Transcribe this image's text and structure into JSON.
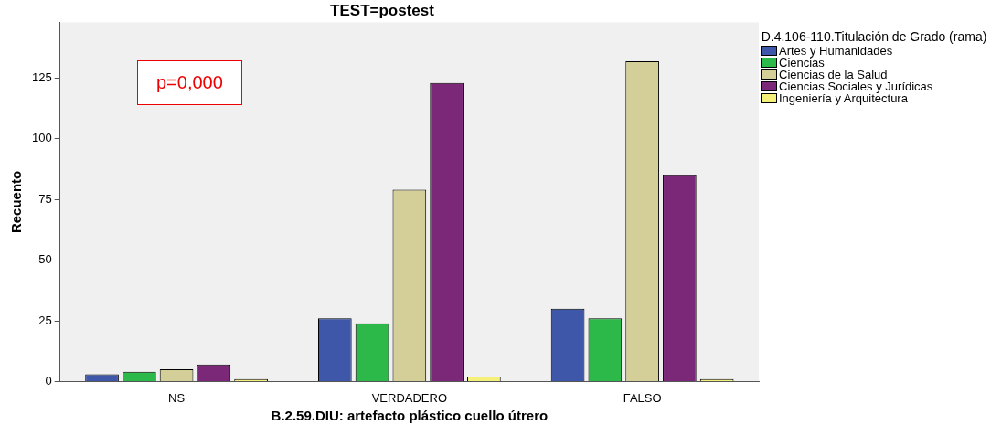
{
  "chart_data": {
    "type": "bar",
    "title": "TEST=postest",
    "xlabel": "B.2.59.DIU: artefacto plástico cuello útrero",
    "ylabel": "Recuento",
    "legend_title": "D.4.106-110.Titulación de Grado (rama)",
    "legend": "right",
    "categories": [
      "NS",
      "VERDADERO",
      "FALSO"
    ],
    "series": [
      {
        "name": "Artes y Humanidades",
        "color": "#3f57a8",
        "values": [
          3,
          26,
          30
        ]
      },
      {
        "name": "Ciencias",
        "color": "#2db84a",
        "values": [
          4,
          24,
          26
        ]
      },
      {
        "name": "Ciencias de la Salud",
        "color": "#d4cf98",
        "values": [
          5,
          79,
          132
        ]
      },
      {
        "name": "Ciencias Sociales y Jurídicas",
        "color": "#7b2878",
        "values": [
          7,
          123,
          85
        ]
      },
      {
        "name": "Ingeniería y Arquitectura",
        "color": "#f5f07a",
        "values": [
          1,
          2,
          1
        ]
      }
    ],
    "ylim": [
      0,
      148
    ],
    "yticks": [
      0,
      25,
      50,
      75,
      100,
      125
    ],
    "annotations": [
      "p=0,000"
    ]
  }
}
